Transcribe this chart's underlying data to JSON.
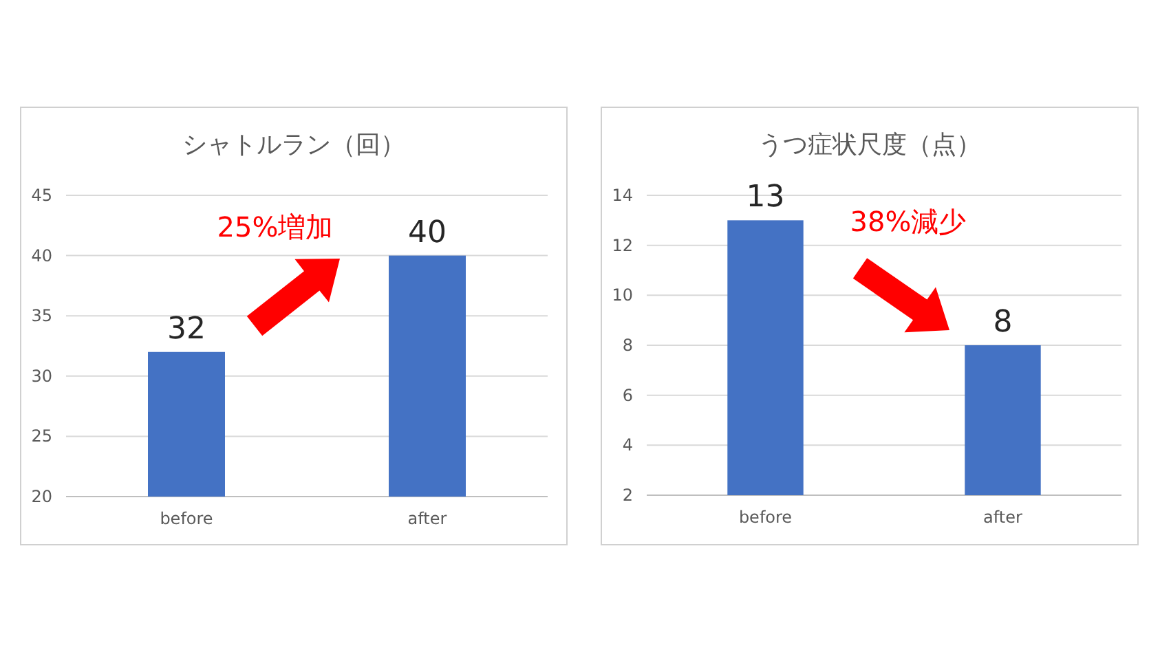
{
  "chart_data": [
    {
      "type": "bar",
      "title": "シャトルラン（回）",
      "categories": [
        "before",
        "after"
      ],
      "values": [
        32,
        40
      ],
      "color": "#4472c4",
      "ylim": [
        20,
        45
      ],
      "yticks": [
        20,
        25,
        30,
        35,
        40,
        45
      ],
      "grid": "y",
      "data_labels": true,
      "annotations": [
        "25%増加"
      ]
    },
    {
      "type": "bar",
      "title": "うつ症状尺度（点）",
      "categories": [
        "before",
        "after"
      ],
      "values": [
        13,
        8
      ],
      "color": "#4472c4",
      "ylim": [
        2,
        14
      ],
      "yticks": [
        2,
        4,
        6,
        8,
        10,
        12,
        14
      ],
      "grid": "y",
      "data_labels": true,
      "annotations": [
        "38%減少"
      ]
    }
  ]
}
